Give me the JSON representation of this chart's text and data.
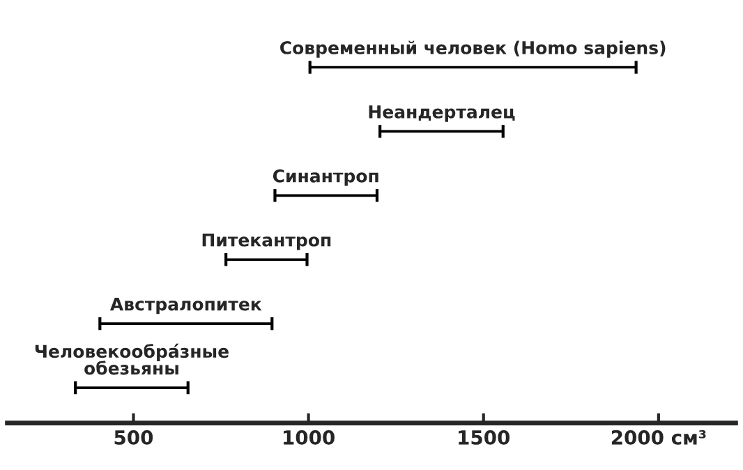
{
  "chart_data": {
    "type": "bar",
    "orientation": "horizontal",
    "categories": [
      "Современный человек (Homo sapiens)",
      "Неандерталец",
      "Синантроп",
      "Питекантроп",
      "Австралопитек",
      "Человекообра́зные\nобезьяны"
    ],
    "base": [
      1000,
      1200,
      900,
      760,
      400,
      330
    ],
    "values": [
      940,
      360,
      300,
      240,
      500,
      330
    ],
    "color": "#000000",
    "xlim": [
      140,
      2220
    ],
    "xticks": [
      500,
      1000,
      1500,
      {
        "value": 2000,
        "label": "2000 см³"
      }
    ],
    "grid": false,
    "legend": false
  }
}
